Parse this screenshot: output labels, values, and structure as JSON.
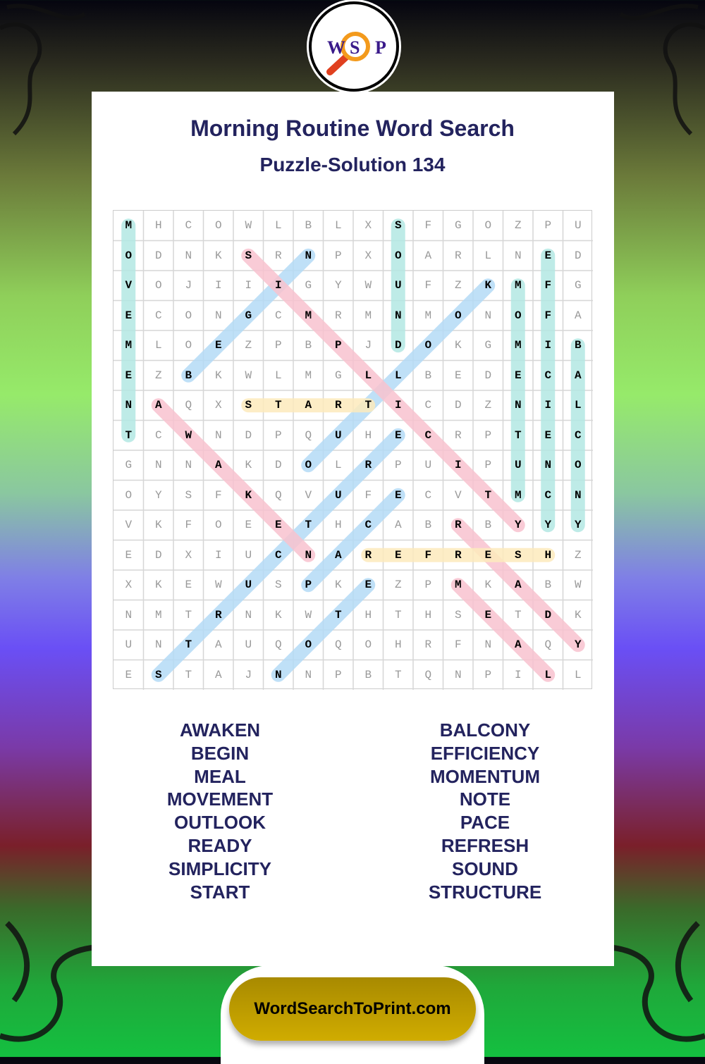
{
  "logo": {
    "letters": [
      "W",
      "S",
      "P"
    ]
  },
  "header": {
    "title": "Morning Routine Word Search",
    "subtitle": "Puzzle-Solution 134"
  },
  "grid": {
    "rows": [
      "MHCOWLBLXSFGOZPU",
      "ODNKSRNPXOARLNED",
      "VOJIIIGYWUFZKMFG",
      "ECONGCMRMNMONOFA",
      "MLOEZPBPJDOKGMIB",
      "EZBKWLMGLLBEDECA",
      "NAQXSTARTICDZNIL",
      "TCWNDPQUHECRPTEC",
      "GNNAKDOLRPUIPUNO",
      "OYSFKQVUFECVTMCN",
      "VKFOEETHCABRBYYY",
      "EDXIUCNAREFRESHZ",
      "XKEWUSPKEZPMKABW",
      "NMTRNKWTHTHSETDK",
      "UNTAUQOQOHRFNAQY",
      "ESTAJNNPBTQNPILL"
    ],
    "solutions": [
      {
        "word": "MOVEMENT",
        "start": [
          0,
          0
        ],
        "end": [
          7,
          0
        ],
        "color": "teal"
      },
      {
        "word": "SOUND",
        "start": [
          0,
          9
        ],
        "end": [
          4,
          9
        ],
        "color": "teal"
      },
      {
        "word": "EFFICIENCY",
        "start": [
          1,
          14
        ],
        "end": [
          10,
          14
        ],
        "color": "teal"
      },
      {
        "word": "MOMENTUM",
        "start": [
          2,
          13
        ],
        "end": [
          9,
          13
        ],
        "color": "teal"
      },
      {
        "word": "BALCONY",
        "start": [
          4,
          15
        ],
        "end": [
          10,
          15
        ],
        "color": "teal"
      },
      {
        "word": "BEGIN",
        "start": [
          5,
          2
        ],
        "end": [
          1,
          6
        ],
        "color": "blue"
      },
      {
        "word": "OUTLOOK",
        "start": [
          8,
          6
        ],
        "end": [
          2,
          12
        ],
        "color": "blue"
      },
      {
        "word": "STRUCTURE",
        "start": [
          15,
          1
        ],
        "end": [
          7,
          9
        ],
        "color": "blue"
      },
      {
        "word": "PACE",
        "start": [
          12,
          6
        ],
        "end": [
          9,
          9
        ],
        "color": "blue"
      },
      {
        "word": "NOTE",
        "start": [
          15,
          5
        ],
        "end": [
          12,
          8
        ],
        "color": "blue"
      },
      {
        "word": "SIMPLICITY",
        "start": [
          1,
          4
        ],
        "end": [
          10,
          13
        ],
        "color": "pink"
      },
      {
        "word": "AWAKEN",
        "start": [
          6,
          1
        ],
        "end": [
          11,
          6
        ],
        "color": "pink"
      },
      {
        "word": "READY",
        "start": [
          10,
          11
        ],
        "end": [
          14,
          15
        ],
        "color": "pink"
      },
      {
        "word": "MEAL",
        "start": [
          12,
          11
        ],
        "end": [
          15,
          14
        ],
        "color": "pink"
      },
      {
        "word": "START",
        "start": [
          6,
          4
        ],
        "end": [
          6,
          8
        ],
        "color": "yellow"
      },
      {
        "word": "REFRESH",
        "start": [
          11,
          8
        ],
        "end": [
          11,
          14
        ],
        "color": "yellow"
      }
    ]
  },
  "colors": {
    "teal": "#b3e8e3",
    "blue": "#b5dbf6",
    "pink": "#f9c3cf",
    "yellow": "#fdebbd",
    "title": "#23235e",
    "banner": "#c4a200"
  },
  "word_list": {
    "left": [
      "AWAKEN",
      "BEGIN",
      "MEAL",
      "MOVEMENT",
      "OUTLOOK",
      "READY",
      "SIMPLICITY",
      "START"
    ],
    "right": [
      "BALCONY",
      "EFFICIENCY",
      "MOMENTUM",
      "NOTE",
      "PACE",
      "REFRESH",
      "SOUND",
      "STRUCTURE"
    ]
  },
  "footer": {
    "site": "WordSearchToPrint.com"
  }
}
